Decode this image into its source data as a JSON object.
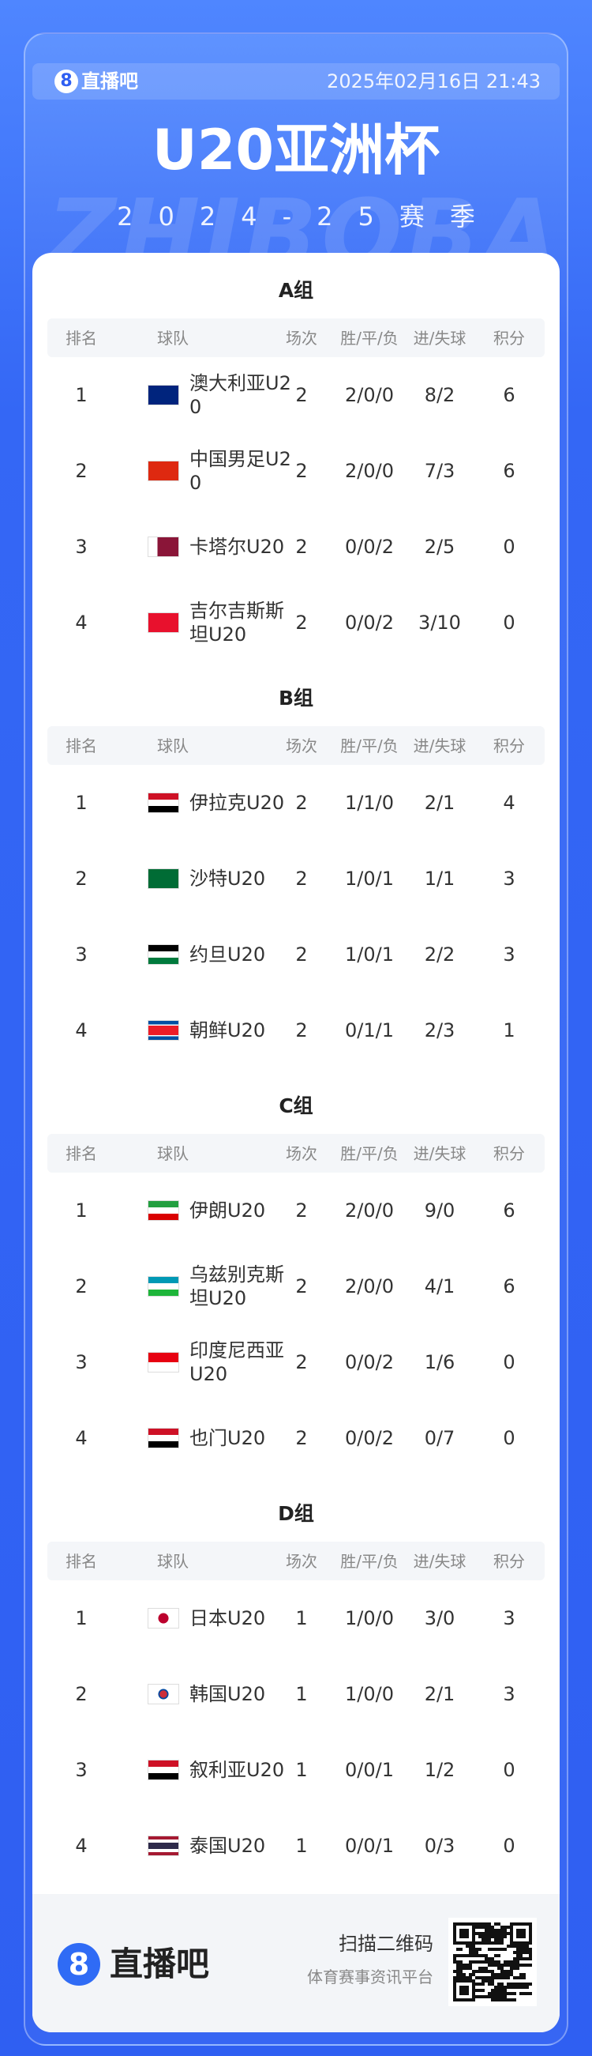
{
  "header": {
    "logo_icon": "8",
    "logo": "直播吧",
    "datetime": "2025年02月16日 21:43"
  },
  "title": "U20亚洲杯",
  "subtitle": "2024-25赛季",
  "watermark": "ZHIBOBA",
  "columns": [
    "排名",
    "球队",
    "场次",
    "胜/平/负",
    "进/失球",
    "积分"
  ],
  "groups": [
    {
      "name": "A组",
      "rows": [
        [
          "1",
          "澳大利亚U20",
          "2",
          "2/0/0",
          "8/2",
          "6"
        ],
        [
          "2",
          "中国男足U20",
          "2",
          "2/0/0",
          "7/3",
          "6"
        ],
        [
          "3",
          "卡塔尔U20",
          "2",
          "0/0/2",
          "2/5",
          "0"
        ],
        [
          "4",
          "吉尔吉斯斯坦U20",
          "2",
          "0/0/2",
          "3/10",
          "0"
        ]
      ]
    },
    {
      "name": "B组",
      "rows": [
        [
          "1",
          "伊拉克U20",
          "2",
          "1/1/0",
          "2/1",
          "4"
        ],
        [
          "2",
          "沙特U20",
          "2",
          "1/0/1",
          "1/1",
          "3"
        ],
        [
          "3",
          "约旦U20",
          "2",
          "1/0/1",
          "2/2",
          "3"
        ],
        [
          "4",
          "朝鲜U20",
          "2",
          "0/1/1",
          "2/3",
          "1"
        ]
      ]
    },
    {
      "name": "C组",
      "rows": [
        [
          "1",
          "伊朗U20",
          "2",
          "2/0/0",
          "9/0",
          "6"
        ],
        [
          "2",
          "乌兹别克斯坦U20",
          "2",
          "2/0/0",
          "4/1",
          "6"
        ],
        [
          "3",
          "印度尼西亚U20",
          "2",
          "0/0/2",
          "1/6",
          "0"
        ],
        [
          "4",
          "也门U20",
          "2",
          "0/0/2",
          "0/7",
          "0"
        ]
      ]
    },
    {
      "name": "D组",
      "rows": [
        [
          "1",
          "日本U20",
          "1",
          "1/0/0",
          "3/0",
          "3"
        ],
        [
          "2",
          "韩国U20",
          "1",
          "1/0/0",
          "2/1",
          "3"
        ],
        [
          "3",
          "叙利亚U20",
          "1",
          "0/0/1",
          "1/2",
          "0"
        ],
        [
          "4",
          "泰国U20",
          "1",
          "0/0/1",
          "0/3",
          "0"
        ]
      ]
    }
  ],
  "footer": {
    "logo_icon": "8",
    "logo": "直播吧",
    "scan": "扫描二维码",
    "tagline": "体育赛事资讯平台"
  }
}
